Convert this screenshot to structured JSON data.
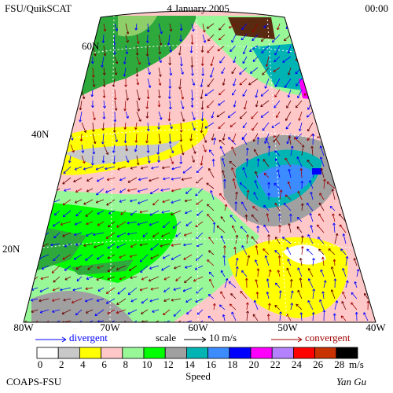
{
  "header": {
    "left": "FSU/QuikSCAT",
    "center": "4 January 2005",
    "right": "00:00"
  },
  "latitude_labels": [
    "60N",
    "40N",
    "20N"
  ],
  "longitude_labels": [
    "80W",
    "70W",
    "60W",
    "50W",
    "40W"
  ],
  "legend": {
    "divergent": "divergent",
    "scale": "scale",
    "scale_value": "10 m/s",
    "convergent": "convergent"
  },
  "speed_scale": {
    "ticks": [
      0,
      2,
      4,
      6,
      8,
      10,
      12,
      14,
      16,
      18,
      20,
      22,
      24,
      26,
      28
    ],
    "colors": [
      "#ffffff",
      "#c8c8c8",
      "#ffff00",
      "#ffc8c8",
      "#98f898",
      "#00ff00",
      "#a0a0a0",
      "#00b4b4",
      "#3c8cff",
      "#0000ff",
      "#ff00ff",
      "#b482ff",
      "#ff0000",
      "#c83200",
      "#000000"
    ],
    "unit": "m/s",
    "label": "Speed"
  },
  "footer": {
    "left": "COAPS-FSU",
    "right": "Yan Gu"
  }
}
